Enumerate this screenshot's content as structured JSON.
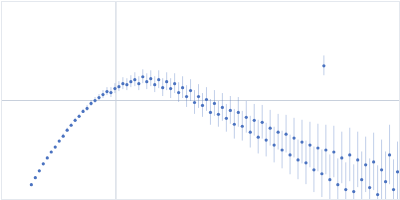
{
  "chart_data": {
    "type": "scatter",
    "color": "#4a72c0",
    "xlim": [
      0,
      400
    ],
    "ylim": [
      0,
      200
    ],
    "xticks": [
      115
    ],
    "yticks": [
      100
    ],
    "grid": true,
    "tick_labels": false,
    "x": [
      30,
      34,
      38,
      42,
      46,
      50,
      54,
      58,
      62,
      66,
      70,
      74,
      78,
      82,
      86,
      90,
      94,
      98,
      102,
      106,
      110,
      114,
      118,
      122,
      126,
      130,
      134,
      138,
      142,
      146,
      150,
      154,
      158,
      162,
      166,
      170,
      174,
      178,
      182,
      186,
      190,
      194,
      198,
      202,
      206,
      210,
      214,
      218,
      222,
      226,
      230,
      234,
      238,
      242,
      246,
      250,
      254,
      258,
      262,
      266,
      270,
      274,
      278,
      282,
      286,
      290,
      294,
      298,
      302,
      306,
      310,
      314,
      318,
      322,
      324,
      326,
      330,
      334,
      338,
      342,
      346,
      350,
      354,
      358,
      362,
      366,
      370,
      374,
      378,
      382,
      386,
      390,
      394,
      398
    ],
    "values": [
      15,
      22,
      29,
      36,
      42,
      48,
      53,
      59,
      64,
      70,
      75,
      80,
      84,
      89,
      92,
      97,
      100,
      103,
      106,
      109,
      108,
      112,
      114,
      117,
      116,
      119,
      121,
      117,
      124,
      119,
      122,
      116,
      121,
      113,
      119,
      112,
      117,
      108,
      113,
      104,
      110,
      98,
      104,
      95,
      101,
      88,
      97,
      86,
      93,
      82,
      90,
      76,
      88,
      74,
      83,
      68,
      80,
      63,
      78,
      60,
      72,
      55,
      68,
      50,
      66,
      45,
      62,
      40,
      58,
      37,
      55,
      30,
      52,
      26,
      135,
      50,
      20,
      48,
      15,
      42,
      10,
      45,
      8,
      40,
      20,
      35,
      12,
      38,
      5,
      30,
      18,
      45,
      10,
      28
    ],
    "errors": [
      1,
      1,
      1,
      1,
      1,
      1,
      1,
      1,
      2,
      2,
      2,
      2,
      2,
      2,
      3,
      3,
      3,
      3,
      4,
      4,
      5,
      5,
      5,
      6,
      6,
      6,
      7,
      7,
      7,
      8,
      8,
      8,
      9,
      9,
      9,
      10,
      10,
      10,
      11,
      11,
      11,
      12,
      12,
      12,
      12,
      13,
      13,
      13,
      14,
      14,
      14,
      15,
      15,
      15,
      16,
      16,
      16,
      17,
      17,
      17,
      18,
      18,
      18,
      19,
      19,
      20,
      20,
      20,
      22,
      22,
      23,
      23,
      24,
      24,
      10,
      25,
      25,
      26,
      26,
      26,
      27,
      27,
      27,
      28,
      28,
      28,
      29,
      29,
      29,
      30,
      30,
      30,
      30,
      30
    ]
  }
}
